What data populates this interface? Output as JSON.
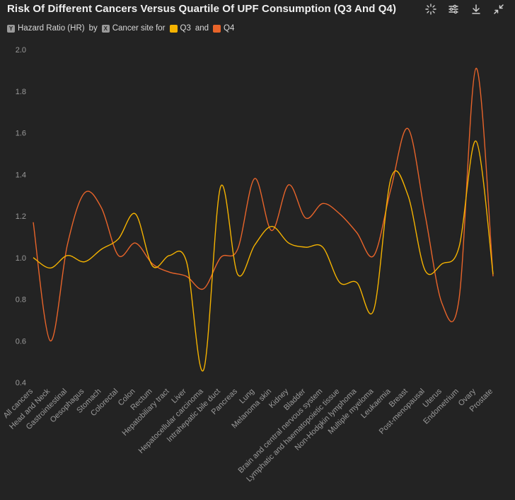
{
  "title": "Risk Of Different Cancers Versus Quartile Of UPF Consumption (Q3 And Q4)",
  "legend": {
    "y_field_icon": "Y",
    "y_field": "Hazard Ratio (HR)",
    "by": "by",
    "x_field_icon": "X",
    "x_field": "Cancer site for",
    "and": "and"
  },
  "toolbar": {
    "focus_icon": "sparkle-icon",
    "settings_icon": "sliders-icon",
    "download_icon": "download-icon",
    "collapse_icon": "collapse-icon"
  },
  "colors": {
    "background": "#232323",
    "q3": "#f5b300",
    "q4": "#e8642a",
    "axis_text": "#9a9a9a"
  },
  "chart_data": {
    "type": "line",
    "title": "Risk Of Different Cancers Versus Quartile Of UPF Consumption (Q3 And Q4)",
    "xlabel": "Cancer site",
    "ylabel": "Hazard Ratio (HR)",
    "ylim": [
      0.4,
      2.0
    ],
    "yticks": [
      "0.4",
      "0.6",
      "0.8",
      "1.0",
      "1.2",
      "1.4",
      "1.6",
      "1.8",
      "2.0"
    ],
    "grid": false,
    "categories": [
      "All cancers",
      "Head and Neck",
      "Gastrointestinal",
      "Oesophagus",
      "Stomach",
      "Colorectal",
      "Colon",
      "Rectum",
      "Hepatobiliary tract",
      "Liver",
      "Hepatocellular carcinoma",
      "Intrahepatic bile duct",
      "Pancreas",
      "Lung",
      "Melanoma skin",
      "Kidney",
      "Bladder",
      "Brain and central nervous system",
      "Lymphatic and haematopoietic tissue",
      "Non-Hodgkin lymphoma",
      "Multiple myeloma",
      "Leukaemia",
      "Breast",
      "Post-menopausal",
      "Uterus",
      "Endometrium",
      "Ovary",
      "Prostate"
    ],
    "series": [
      {
        "name": "Q3",
        "color": "#f5b300",
        "values": [
          1.0,
          0.95,
          1.01,
          0.98,
          1.04,
          1.09,
          1.21,
          0.96,
          1.01,
          0.98,
          0.46,
          1.34,
          0.92,
          1.06,
          1.15,
          1.07,
          1.05,
          1.05,
          0.88,
          0.88,
          0.75,
          1.38,
          1.3,
          0.94,
          0.97,
          1.05,
          1.56,
          0.92
        ]
      },
      {
        "name": "Q4",
        "color": "#e8642a",
        "values": [
          1.17,
          0.6,
          1.06,
          1.31,
          1.24,
          1.01,
          1.07,
          0.97,
          0.93,
          0.91,
          0.85,
          1.0,
          1.04,
          1.38,
          1.13,
          1.35,
          1.19,
          1.26,
          1.21,
          1.12,
          1.01,
          1.33,
          1.62,
          1.21,
          0.78,
          0.8,
          1.91,
          0.91
        ]
      }
    ]
  }
}
